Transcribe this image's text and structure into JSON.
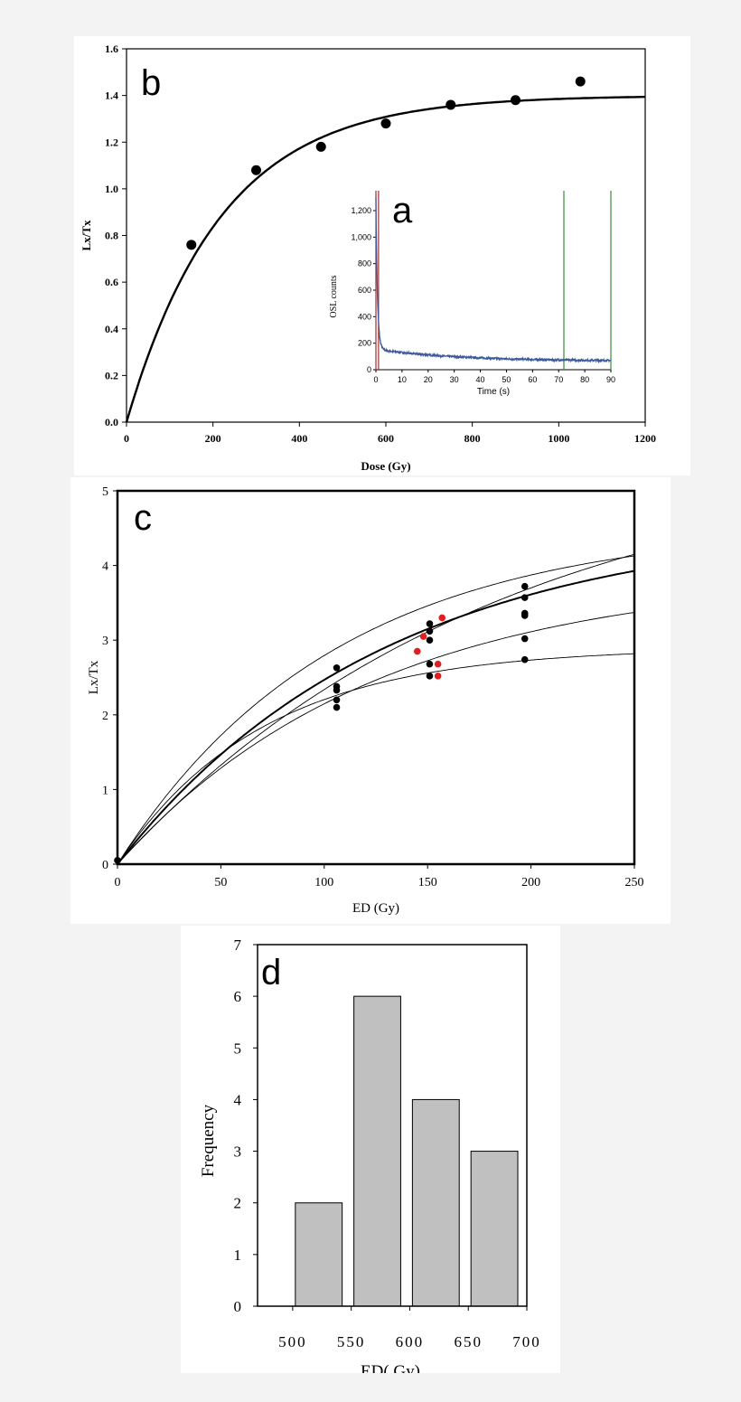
{
  "colors": {
    "page_bg": "#f3f3f3",
    "panel_bg": "#ffffff",
    "ink": "#000000",
    "osl_trace": "#3d5a9c",
    "red_line": "#a03030",
    "green_line": "#3a8a3a",
    "red_point": "#e02020",
    "bar_fill": "#c0c0c0"
  },
  "chart_data": [
    {
      "id": "b",
      "panel_letter": "b",
      "type": "scatter",
      "xlabel": "Dose (Gy)",
      "ylabel": "Lx/Tx",
      "xlim": [
        0,
        1200
      ],
      "ylim": [
        0,
        1.6
      ],
      "xticks": [
        "0",
        "200",
        "400",
        "600",
        "800",
        "1000",
        "1200"
      ],
      "yticks": [
        "0.0",
        "0.2",
        "0.4",
        "0.6",
        "0.8",
        "1.0",
        "1.2",
        "1.4",
        "1.6"
      ],
      "points": [
        {
          "x": 150,
          "y": 0.76
        },
        {
          "x": 300,
          "y": 1.08
        },
        {
          "x": 450,
          "y": 1.18
        },
        {
          "x": 600,
          "y": 1.28
        },
        {
          "x": 750,
          "y": 1.36
        },
        {
          "x": 900,
          "y": 1.38
        },
        {
          "x": 1050,
          "y": 1.46
        }
      ],
      "fit": {
        "model": "saturating_exponential",
        "ymax": 1.4,
        "d0": 220
      }
    },
    {
      "id": "a",
      "panel_letter": "a",
      "type": "line",
      "inset_of": "b",
      "xlabel": "Time (s)",
      "ylabel": "OSL counts",
      "xlim": [
        0,
        90
      ],
      "ylim": [
        0,
        1350
      ],
      "xticks": [
        "0",
        "10",
        "20",
        "30",
        "40",
        "50",
        "60",
        "70",
        "80",
        "90"
      ],
      "yticks": [
        "0",
        "200",
        "400",
        "600",
        "800",
        "1,000",
        "1,200"
      ],
      "decay": {
        "initial": 1300,
        "fast_amp": 1100,
        "fast_tau": 0.6,
        "slow_amp": 90,
        "slow_tau": 30,
        "background": 65
      },
      "markers": {
        "signal_window_x": [
          0,
          1
        ],
        "background_window_x": [
          72,
          90
        ]
      }
    },
    {
      "id": "c",
      "panel_letter": "c",
      "type": "scatter",
      "xlabel": "ED (Gy)",
      "ylabel": "Lx/Tx",
      "xlim": [
        0,
        250
      ],
      "ylim": [
        0,
        5
      ],
      "xticks": [
        "0",
        "50",
        "100",
        "150",
        "200",
        "250"
      ],
      "yticks": [
        "0",
        "1",
        "2",
        "3",
        "4",
        "5"
      ],
      "black_points": [
        {
          "x": 0,
          "y": 0.05
        },
        {
          "x": 106,
          "y": 2.63
        },
        {
          "x": 106,
          "y": 2.38
        },
        {
          "x": 106,
          "y": 2.33
        },
        {
          "x": 106,
          "y": 2.2
        },
        {
          "x": 106,
          "y": 2.1
        },
        {
          "x": 151,
          "y": 3.22
        },
        {
          "x": 151,
          "y": 3.12
        },
        {
          "x": 151,
          "y": 3.0
        },
        {
          "x": 151,
          "y": 2.68
        },
        {
          "x": 151,
          "y": 2.52
        },
        {
          "x": 197,
          "y": 3.72
        },
        {
          "x": 197,
          "y": 3.57
        },
        {
          "x": 197,
          "y": 3.36
        },
        {
          "x": 197,
          "y": 3.33
        },
        {
          "x": 197,
          "y": 3.02
        },
        {
          "x": 197,
          "y": 2.74
        }
      ],
      "red_points": [
        {
          "x": 145,
          "y": 2.85
        },
        {
          "x": 148,
          "y": 3.05
        },
        {
          "x": 157,
          "y": 3.3
        },
        {
          "x": 155,
          "y": 2.68
        },
        {
          "x": 155,
          "y": 2.52
        }
      ],
      "curves": [
        {
          "ymax": 4.6,
          "d0": 130,
          "weight": "bold"
        },
        {
          "ymax": 4.55,
          "d0": 105,
          "weight": "thin"
        },
        {
          "ymax": 5.6,
          "d0": 185,
          "weight": "thin"
        },
        {
          "ymax": 3.9,
          "d0": 125,
          "weight": "thin"
        },
        {
          "ymax": 2.9,
          "d0": 70,
          "weight": "thin"
        }
      ]
    },
    {
      "id": "d",
      "panel_letter": "d",
      "type": "bar",
      "xlabel": "ED( Gy)",
      "ylabel": "Frequency",
      "xlim": [
        470,
        700
      ],
      "ylim": [
        0,
        7
      ],
      "xticks": [
        "500",
        "550",
        "600",
        "650",
        "700"
      ],
      "yticks": [
        "0",
        "1",
        "2",
        "3",
        "4",
        "5",
        "6",
        "7"
      ],
      "categories": [
        "500-550",
        "550-600",
        "600-650",
        "650-700"
      ],
      "values": [
        2,
        6,
        4,
        3
      ]
    }
  ]
}
